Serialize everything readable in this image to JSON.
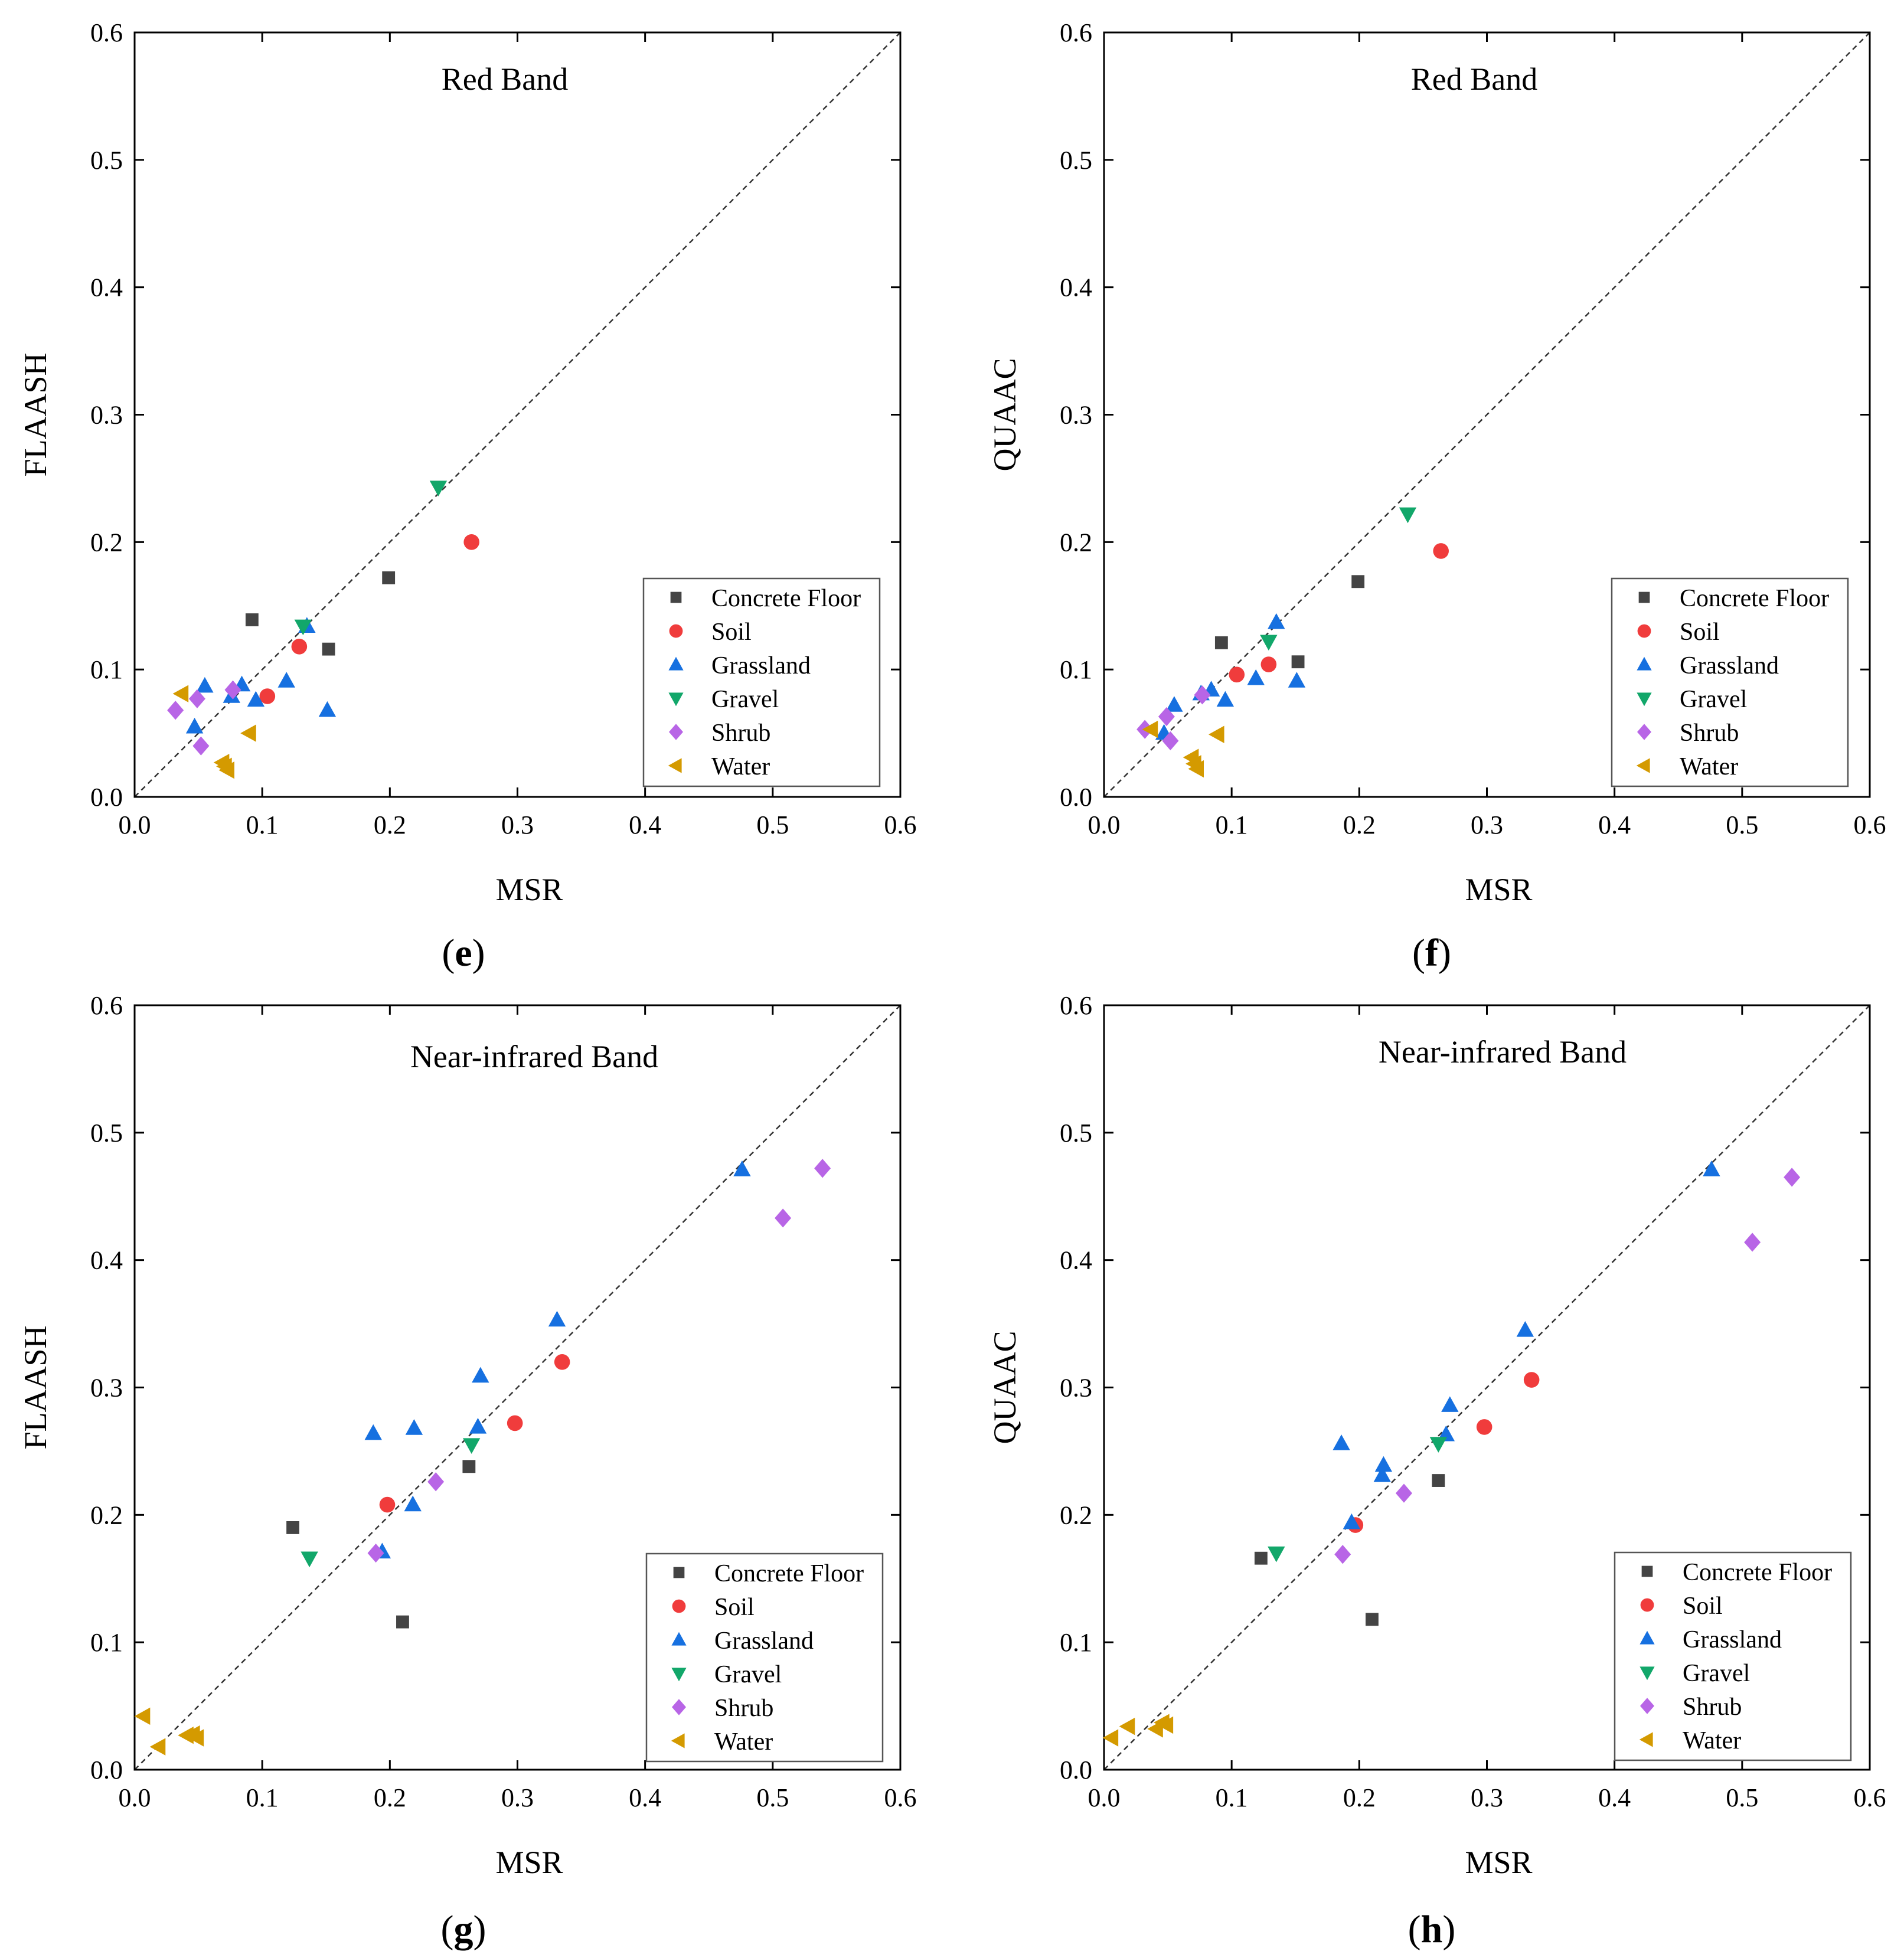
{
  "figure": {
    "legend_series": [
      "Concrete Floor",
      "Soil",
      "Grassland",
      "Gravel",
      "Shrub",
      "Water"
    ]
  },
  "series_styles": {
    "Concrete Floor": {
      "marker": "square",
      "color": "#444444"
    },
    "Soil": {
      "marker": "circle",
      "color": "#f03c3c"
    },
    "Grassland": {
      "marker": "triangle-up",
      "color": "#1670e0"
    },
    "Gravel": {
      "marker": "triangle-down",
      "color": "#12a76a"
    },
    "Shrub": {
      "marker": "diamond",
      "color": "#b865e6"
    },
    "Water": {
      "marker": "triangle-left",
      "color": "#d49a00"
    }
  },
  "chart_data": [
    {
      "panel": "e",
      "type": "scatter",
      "title": "Red Band",
      "xlabel": "MSR",
      "ylabel": "FLAASH",
      "xlim": [
        0,
        0.6
      ],
      "ylim": [
        0,
        0.6
      ],
      "xticks": [
        "0.0",
        "0.1",
        "0.2",
        "0.3",
        "0.4",
        "0.5",
        "0.6"
      ],
      "yticks": [
        "0.0",
        "0.1",
        "0.2",
        "0.3",
        "0.4",
        "0.5",
        "0.6"
      ],
      "reference_line": "y = x (dashed)",
      "legend_position": "bottom-right",
      "series": [
        {
          "name": "Concrete Floor",
          "points": [
            [
              0.092,
              0.139
            ],
            [
              0.199,
              0.172
            ],
            [
              0.152,
              0.116
            ]
          ]
        },
        {
          "name": "Soil",
          "points": [
            [
              0.264,
              0.2
            ],
            [
              0.129,
              0.118
            ],
            [
              0.104,
              0.079
            ]
          ]
        },
        {
          "name": "Grassland",
          "points": [
            [
              0.135,
              0.134
            ],
            [
              0.055,
              0.087
            ],
            [
              0.084,
              0.088
            ],
            [
              0.076,
              0.079
            ],
            [
              0.095,
              0.076
            ],
            [
              0.119,
              0.091
            ],
            [
              0.047,
              0.055
            ],
            [
              0.151,
              0.068
            ]
          ]
        },
        {
          "name": "Gravel",
          "points": [
            [
              0.238,
              0.243
            ],
            [
              0.132,
              0.134
            ]
          ]
        },
        {
          "name": "Shrub",
          "points": [
            [
              0.032,
              0.068
            ],
            [
              0.049,
              0.077
            ],
            [
              0.077,
              0.084
            ],
            [
              0.052,
              0.04
            ]
          ]
        },
        {
          "name": "Water",
          "points": [
            [
              0.037,
              0.081
            ],
            [
              0.09,
              0.05
            ],
            [
              0.069,
              0.027
            ],
            [
              0.071,
              0.024
            ],
            [
              0.073,
              0.021
            ]
          ]
        }
      ]
    },
    {
      "panel": "f",
      "type": "scatter",
      "title": "Red Band",
      "xlabel": "MSR",
      "ylabel": "QUAAC",
      "xlim": [
        0,
        0.6
      ],
      "ylim": [
        0,
        0.6
      ],
      "xticks": [
        "0.0",
        "0.1",
        "0.2",
        "0.3",
        "0.4",
        "0.5",
        "0.6"
      ],
      "yticks": [
        "0.0",
        "0.1",
        "0.2",
        "0.3",
        "0.4",
        "0.5",
        "0.6"
      ],
      "reference_line": "y = x (dashed)",
      "legend_position": "bottom-right",
      "series": [
        {
          "name": "Concrete Floor",
          "points": [
            [
              0.092,
              0.121
            ],
            [
              0.199,
              0.169
            ],
            [
              0.152,
              0.106
            ]
          ]
        },
        {
          "name": "Soil",
          "points": [
            [
              0.264,
              0.193
            ],
            [
              0.129,
              0.104
            ],
            [
              0.104,
              0.096
            ]
          ]
        },
        {
          "name": "Grassland",
          "points": [
            [
              0.135,
              0.137
            ],
            [
              0.055,
              0.072
            ],
            [
              0.084,
              0.084
            ],
            [
              0.076,
              0.081
            ],
            [
              0.095,
              0.076
            ],
            [
              0.119,
              0.093
            ],
            [
              0.047,
              0.05
            ],
            [
              0.151,
              0.091
            ]
          ]
        },
        {
          "name": "Gravel",
          "points": [
            [
              0.238,
              0.222
            ],
            [
              0.129,
              0.122
            ]
          ]
        },
        {
          "name": "Shrub",
          "points": [
            [
              0.032,
              0.053
            ],
            [
              0.049,
              0.063
            ],
            [
              0.077,
              0.08
            ],
            [
              0.052,
              0.044
            ]
          ]
        },
        {
          "name": "Water",
          "points": [
            [
              0.037,
              0.053
            ],
            [
              0.089,
              0.049
            ],
            [
              0.069,
              0.031
            ],
            [
              0.071,
              0.026
            ],
            [
              0.073,
              0.022
            ]
          ]
        }
      ]
    },
    {
      "panel": "g",
      "type": "scatter",
      "title": "Near-infrared Band",
      "xlabel": "MSR",
      "ylabel": "FLAASH",
      "xlim": [
        0,
        0.6
      ],
      "ylim": [
        0,
        0.6
      ],
      "xticks": [
        "0.0",
        "0.1",
        "0.2",
        "0.3",
        "0.4",
        "0.5",
        "0.6"
      ],
      "yticks": [
        "0.0",
        "0.1",
        "0.2",
        "0.3",
        "0.4",
        "0.5",
        "0.6"
      ],
      "reference_line": "y = x (dashed)",
      "legend_position": "bottom-right",
      "series": [
        {
          "name": "Concrete Floor",
          "points": [
            [
              0.124,
              0.19
            ],
            [
              0.262,
              0.238
            ],
            [
              0.21,
              0.116
            ]
          ]
        },
        {
          "name": "Soil",
          "points": [
            [
              0.335,
              0.32
            ],
            [
              0.298,
              0.272
            ],
            [
              0.198,
              0.208
            ]
          ]
        },
        {
          "name": "Grassland",
          "points": [
            [
              0.476,
              0.471
            ],
            [
              0.331,
              0.353
            ],
            [
              0.271,
              0.309
            ],
            [
              0.269,
              0.269
            ],
            [
              0.187,
              0.264
            ],
            [
              0.219,
              0.268
            ],
            [
              0.218,
              0.208
            ],
            [
              0.194,
              0.171
            ]
          ]
        },
        {
          "name": "Gravel",
          "points": [
            [
              0.264,
              0.255
            ],
            [
              0.137,
              0.166
            ]
          ]
        },
        {
          "name": "Shrub",
          "points": [
            [
              0.539,
              0.472
            ],
            [
              0.508,
              0.433
            ],
            [
              0.236,
              0.226
            ],
            [
              0.189,
              0.17
            ]
          ]
        },
        {
          "name": "Water",
          "points": [
            [
              0.007,
              0.042
            ],
            [
              0.019,
              0.018
            ],
            [
              0.041,
              0.027
            ],
            [
              0.046,
              0.028
            ],
            [
              0.049,
              0.025
            ]
          ]
        }
      ]
    },
    {
      "panel": "h",
      "type": "scatter",
      "title": "Near-infrared Band",
      "xlabel": "MSR",
      "ylabel": "QUAAC",
      "xlim": [
        0,
        0.6
      ],
      "ylim": [
        0,
        0.6
      ],
      "xticks": [
        "0.0",
        "0.1",
        "0.2",
        "0.3",
        "0.4",
        "0.5",
        "0.6"
      ],
      "yticks": [
        "0.0",
        "0.1",
        "0.2",
        "0.3",
        "0.4",
        "0.5",
        "0.6"
      ],
      "reference_line": "y = x (dashed)",
      "legend_position": "bottom-right",
      "series": [
        {
          "name": "Concrete Floor",
          "points": [
            [
              0.123,
              0.166
            ],
            [
              0.262,
              0.227
            ],
            [
              0.21,
              0.118
            ]
          ]
        },
        {
          "name": "Soil",
          "points": [
            [
              0.335,
              0.306
            ],
            [
              0.298,
              0.269
            ],
            [
              0.197,
              0.192
            ]
          ]
        },
        {
          "name": "Grassland",
          "points": [
            [
              0.476,
              0.471
            ],
            [
              0.33,
              0.345
            ],
            [
              0.271,
              0.286
            ],
            [
              0.268,
              0.263
            ],
            [
              0.186,
              0.256
            ],
            [
              0.219,
              0.239
            ],
            [
              0.218,
              0.231
            ],
            [
              0.194,
              0.194
            ]
          ]
        },
        {
          "name": "Gravel",
          "points": [
            [
              0.262,
              0.256
            ],
            [
              0.135,
              0.17
            ]
          ]
        },
        {
          "name": "Shrub",
          "points": [
            [
              0.539,
              0.465
            ],
            [
              0.508,
              0.414
            ],
            [
              0.235,
              0.217
            ],
            [
              0.187,
              0.169
            ]
          ]
        },
        {
          "name": "Water",
          "points": [
            [
              0.006,
              0.025
            ],
            [
              0.019,
              0.034
            ],
            [
              0.041,
              0.032
            ],
            [
              0.046,
              0.037
            ],
            [
              0.049,
              0.035
            ]
          ]
        }
      ]
    }
  ]
}
